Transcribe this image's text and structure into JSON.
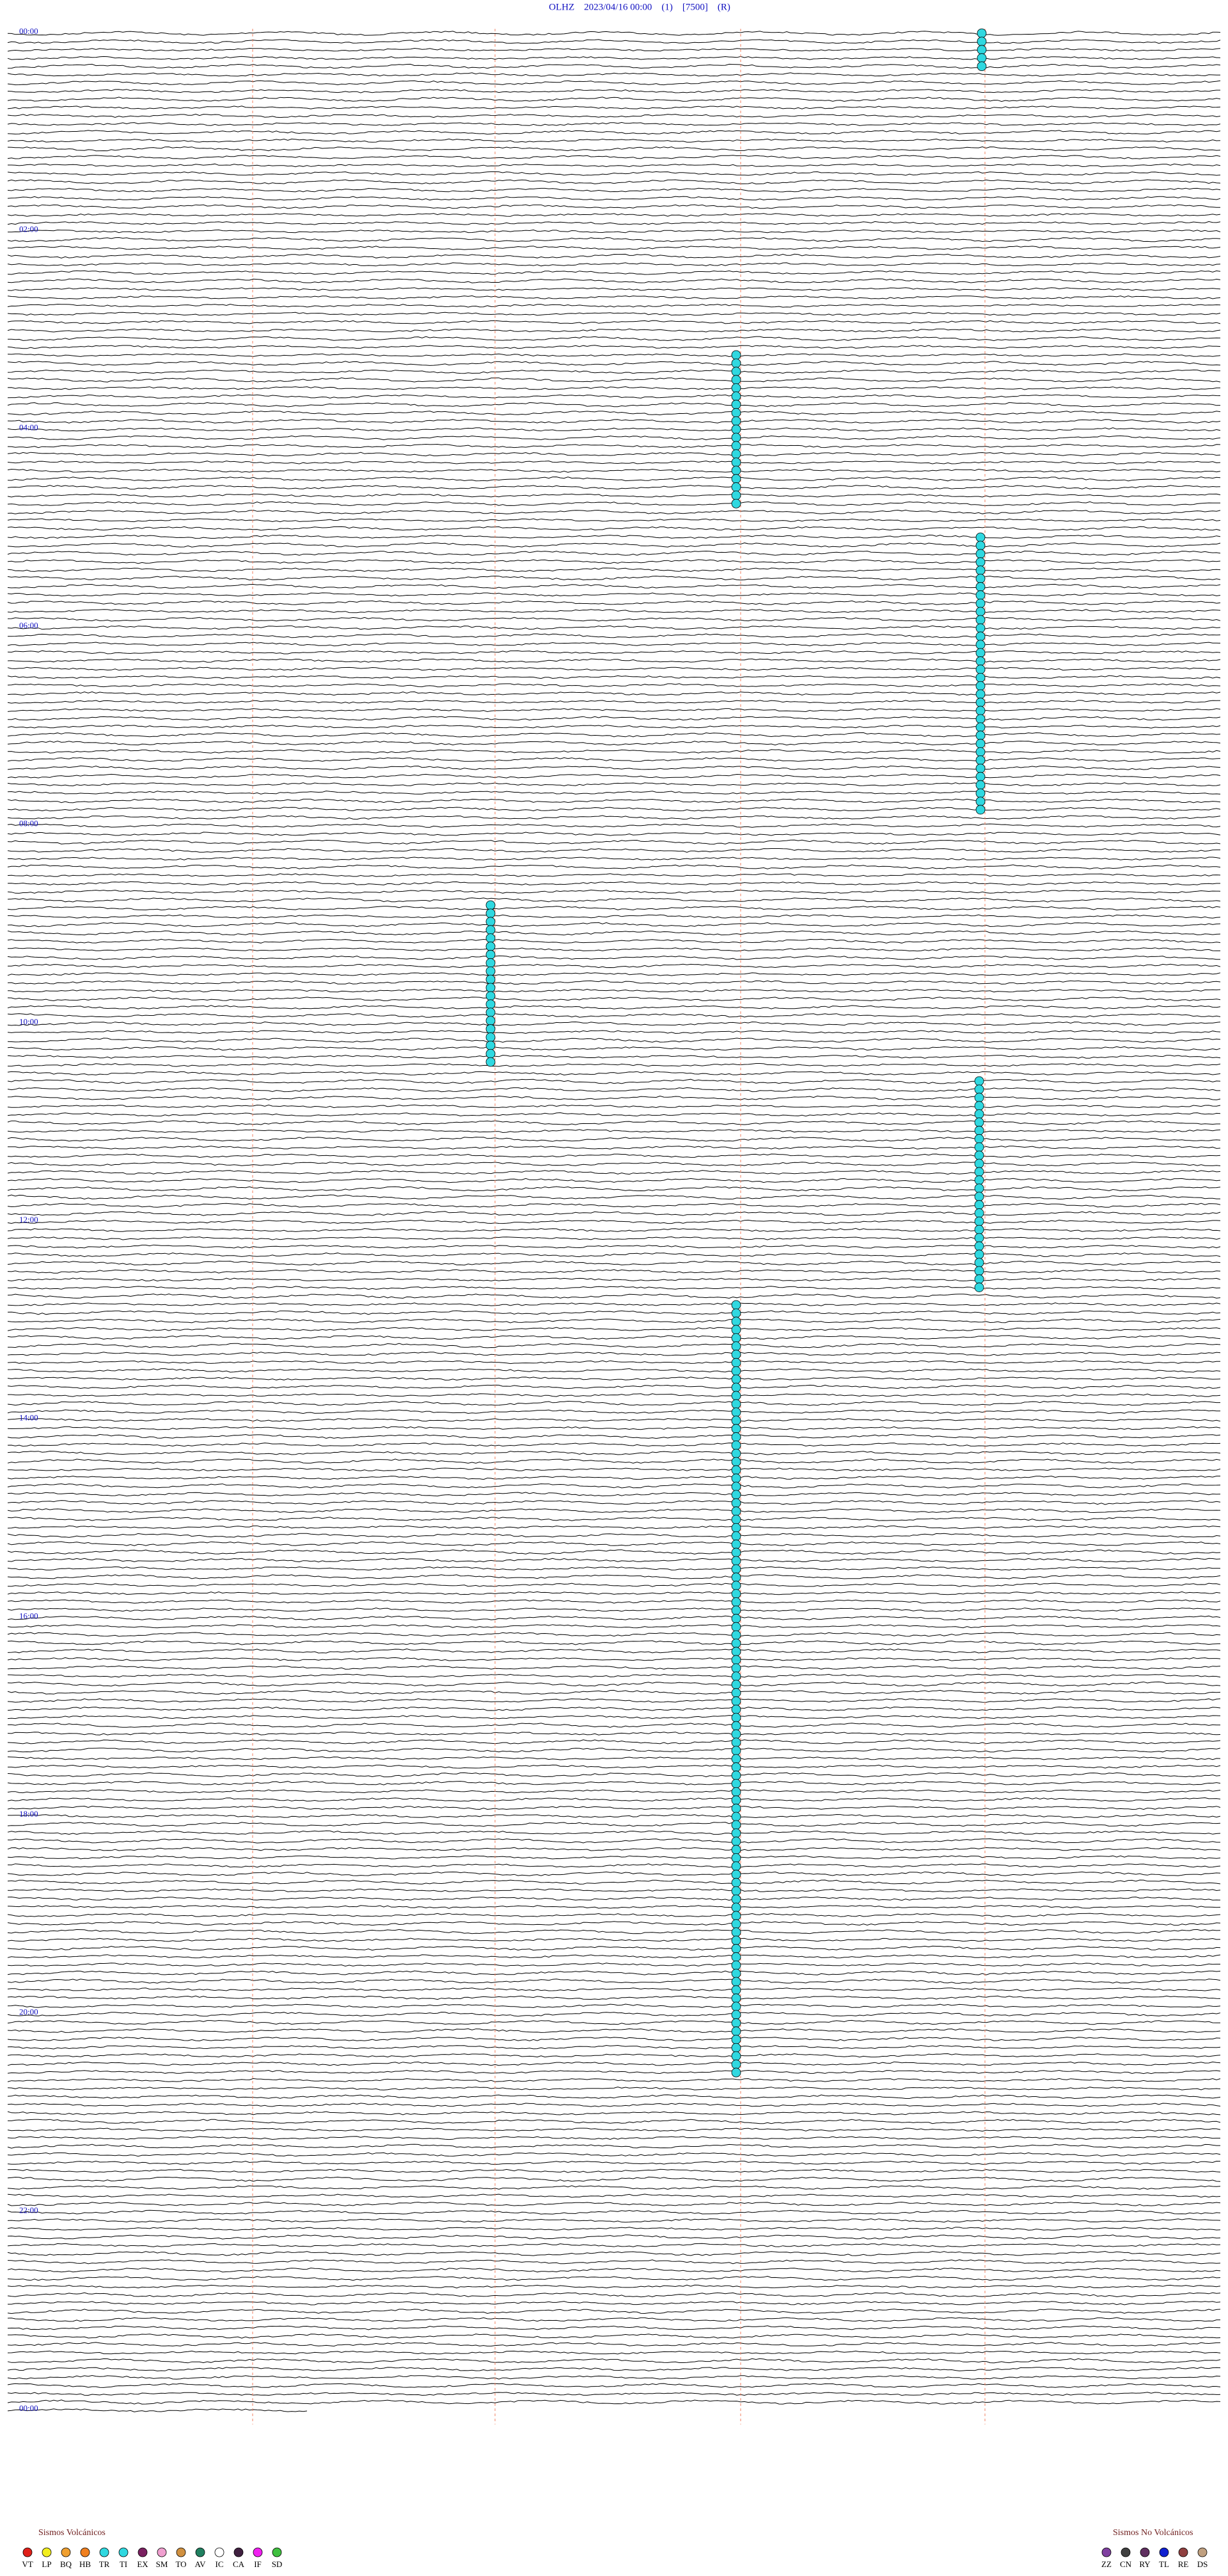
{
  "header": {
    "title": "OLHZ    2023/04/16 00:00    (1)    [7500]    (R)"
  },
  "hour_labels": [
    "00:00",
    "02:00",
    "04:00",
    "06:00",
    "08:00",
    "10:00",
    "12:00",
    "14:00",
    "16:00",
    "18:00",
    "20:00",
    "22:00",
    "00:00"
  ],
  "legend": {
    "volcanic": {
      "title": "Sismos Volcánicos",
      "items": [
        {
          "code": "VT",
          "color": "#e0201a"
        },
        {
          "code": "LP",
          "color": "#f2ee1e"
        },
        {
          "code": "BQ",
          "color": "#f0a030"
        },
        {
          "code": "HB",
          "color": "#f08020"
        },
        {
          "code": "TR",
          "color": "#30d8e0"
        },
        {
          "code": "TI",
          "color": "#30d8e0"
        },
        {
          "code": "EX",
          "color": "#7a2060"
        },
        {
          "code": "SM",
          "color": "#f0a0d0"
        },
        {
          "code": "TO",
          "color": "#d09040"
        },
        {
          "code": "AV",
          "color": "#208060"
        },
        {
          "code": "IC",
          "color": "#ffffff"
        },
        {
          "code": "CA",
          "color": "#402040"
        },
        {
          "code": "IF",
          "color": "#f020f0"
        },
        {
          "code": "SD",
          "color": "#40c040"
        }
      ]
    },
    "non_volcanic": {
      "title": "Sismos No Volcánicos",
      "items": [
        {
          "code": "ZZ",
          "color": "#8040a0"
        },
        {
          "code": "CN",
          "color": "#404040"
        },
        {
          "code": "RY",
          "color": "#603060"
        },
        {
          "code": "TL",
          "color": "#1020d0"
        },
        {
          "code": "RE",
          "color": "#904040"
        },
        {
          "code": "DS",
          "color": "#c0a080"
        }
      ]
    }
  }
}
